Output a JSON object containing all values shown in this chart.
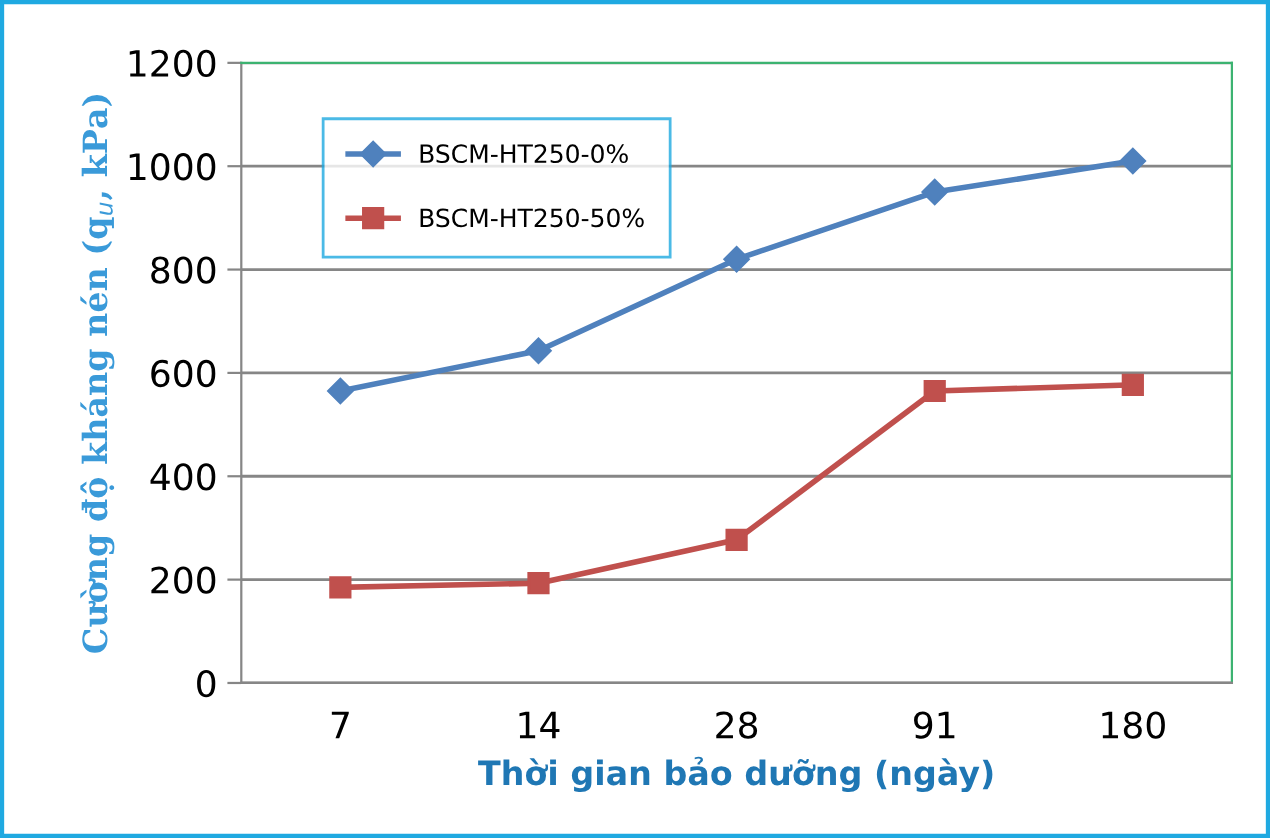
{
  "chart_data": {
    "type": "line",
    "xlabel": "Thời gian bảo dưỡng (ngày)",
    "ylabel": "Cường độ kháng nén (q$_{u}$, kPa)",
    "categories": [
      "7",
      "14",
      "28",
      "91",
      "180"
    ],
    "series": [
      {
        "name": "BSCM-HT250-0%",
        "color": "#4f81bd",
        "marker": "diamond",
        "values": [
          565,
          643,
          820,
          950,
          1010
        ]
      },
      {
        "name": "BSCM-HT250-50%",
        "color": "#c0504d",
        "marker": "square",
        "values": [
          185,
          193,
          277,
          565,
          577
        ]
      }
    ],
    "ylim": [
      0,
      1200
    ],
    "yticks": [
      0,
      200,
      400,
      600,
      800,
      1000,
      1200
    ],
    "grid": "y",
    "legend": "top left",
    "line_style": "solid"
  }
}
